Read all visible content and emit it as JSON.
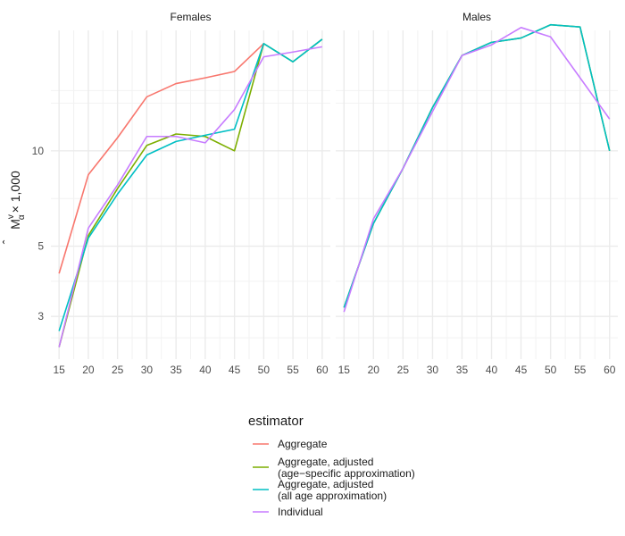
{
  "chart_data": {
    "type": "line",
    "ylabel_main": "M",
    "ylabel_sup": "v",
    "ylabel_sub": "α",
    "ylabel_rest": "× 1,000",
    "y_scale": "log",
    "ylim": [
      2.2,
      24
    ],
    "y_ticks": [
      3,
      5,
      10
    ],
    "y_tick_labels": [
      "3",
      "5",
      "10"
    ],
    "x_ticks": [
      15,
      20,
      25,
      30,
      35,
      40,
      45,
      50,
      55,
      60
    ],
    "x_tick_labels": [
      "15",
      "20",
      "25",
      "30",
      "35",
      "40",
      "45",
      "50",
      "55",
      "60"
    ],
    "xlim": [
      13.6,
      61.4
    ],
    "grid": true,
    "legend_title": "estimator",
    "legend_position": "bottom",
    "legend": [
      {
        "key": "agg",
        "line1": "Aggregate",
        "line2": "",
        "color": "#F8766D"
      },
      {
        "key": "age",
        "line1": "Aggregate, adjusted",
        "line2": "(age−specific approximation)",
        "color": "#7CAE00"
      },
      {
        "key": "all",
        "line1": "Aggregate, adjusted",
        "line2": "(all age approximation)",
        "color": "#00BFC4"
      },
      {
        "key": "ind",
        "line1": "Individual",
        "line2": "",
        "color": "#C77CFF"
      }
    ],
    "panels": [
      {
        "title": "Females",
        "series": [
          {
            "key": "agg",
            "x": [
              15,
              20,
              25,
              30,
              35,
              40,
              45,
              50
            ],
            "y": [
              4.1,
              8.4,
              11.0,
              14.8,
              16.3,
              17.0,
              17.8,
              21.8
            ]
          },
          {
            "key": "age",
            "x": [
              15,
              20,
              25,
              30,
              35,
              40,
              45,
              50,
              55,
              60
            ],
            "y": [
              2.4,
              5.4,
              7.6,
              10.4,
              11.3,
              11.1,
              10.0,
              21.8,
              19.1,
              22.5
            ]
          },
          {
            "key": "all",
            "x": [
              15,
              20,
              25,
              30,
              35,
              40,
              45,
              50,
              55,
              60
            ],
            "y": [
              2.7,
              5.3,
              7.3,
              9.7,
              10.7,
              11.2,
              11.7,
              21.8,
              19.1,
              22.5
            ]
          },
          {
            "key": "ind",
            "x": [
              15,
              20,
              25,
              30,
              35,
              40,
              45,
              50,
              55,
              60
            ],
            "y": [
              2.4,
              5.7,
              7.8,
              11.1,
              11.1,
              10.6,
              13.5,
              19.8,
              20.5,
              21.3
            ]
          }
        ]
      },
      {
        "title": "Males",
        "series": [
          {
            "key": "age",
            "x": [
              15,
              20,
              25,
              30,
              35,
              40,
              45,
              50,
              55,
              60
            ],
            "y": [
              3.2,
              5.9,
              8.8,
              13.7,
              20.0,
              22.0,
              22.7,
              25.0,
              24.6,
              10.0
            ]
          },
          {
            "key": "all",
            "x": [
              15,
              20,
              25,
              30,
              35,
              40,
              45,
              50,
              55,
              60
            ],
            "y": [
              3.2,
              5.9,
              8.8,
              13.7,
              20.0,
              22.0,
              22.7,
              25.0,
              24.6,
              10.0
            ]
          },
          {
            "key": "ind",
            "x": [
              15,
              20,
              25,
              30,
              35,
              40,
              45,
              50,
              55,
              60
            ],
            "y": [
              3.1,
              6.1,
              8.8,
              13.3,
              20.0,
              21.6,
              24.5,
              22.9,
              17.0,
              12.6
            ]
          }
        ]
      }
    ]
  }
}
